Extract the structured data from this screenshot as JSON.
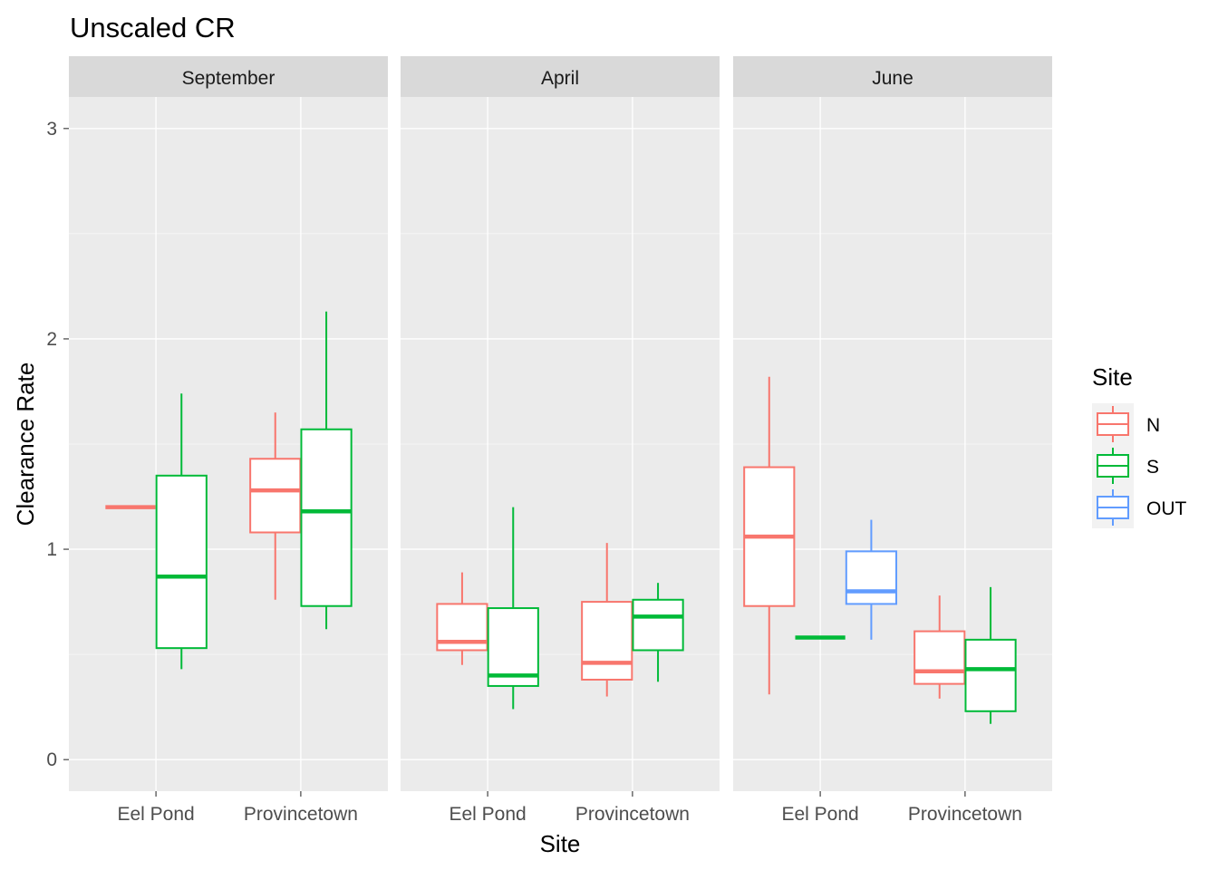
{
  "chart_data": {
    "type": "boxplot",
    "title": "Unscaled CR",
    "xlabel": "Site",
    "ylabel": "Clearance Rate",
    "ylim": [
      -0.15,
      3.15
    ],
    "yticks": [
      0,
      1,
      2,
      3
    ],
    "categories": [
      "Eel Pond",
      "Provincetown"
    ],
    "legend": {
      "title": "Site",
      "position": "right",
      "entries": [
        {
          "name": "N",
          "color": "#F8766D"
        },
        {
          "name": "S",
          "color": "#00BA38"
        },
        {
          "name": "OUT",
          "color": "#619CFF"
        }
      ]
    },
    "grid": true,
    "panels": [
      {
        "label": "September",
        "groups": [
          {
            "category": "Eel Pond",
            "boxes": [
              {
                "series": "N",
                "min": 1.2,
                "q1": 1.2,
                "median": 1.2,
                "q3": 1.2,
                "max": 1.2
              },
              {
                "series": "S",
                "min": 0.43,
                "q1": 0.53,
                "median": 0.87,
                "q3": 1.35,
                "max": 1.74
              }
            ]
          },
          {
            "category": "Provincetown",
            "boxes": [
              {
                "series": "N",
                "min": 0.76,
                "q1": 1.08,
                "median": 1.28,
                "q3": 1.43,
                "max": 1.65
              },
              {
                "series": "S",
                "min": 0.62,
                "q1": 0.73,
                "median": 1.18,
                "q3": 1.57,
                "max": 2.13
              }
            ]
          }
        ]
      },
      {
        "label": "April",
        "groups": [
          {
            "category": "Eel Pond",
            "boxes": [
              {
                "series": "N",
                "min": 0.45,
                "q1": 0.52,
                "median": 0.56,
                "q3": 0.74,
                "max": 0.89
              },
              {
                "series": "S",
                "min": 0.24,
                "q1": 0.35,
                "median": 0.4,
                "q3": 0.72,
                "max": 1.2
              }
            ]
          },
          {
            "category": "Provincetown",
            "boxes": [
              {
                "series": "N",
                "min": 0.3,
                "q1": 0.38,
                "median": 0.46,
                "q3": 0.75,
                "max": 1.03
              },
              {
                "series": "S",
                "min": 0.37,
                "q1": 0.52,
                "median": 0.68,
                "q3": 0.76,
                "max": 0.84
              }
            ]
          }
        ]
      },
      {
        "label": "June",
        "groups": [
          {
            "category": "Eel Pond",
            "boxes": [
              {
                "series": "N",
                "min": 0.31,
                "q1": 0.73,
                "median": 1.06,
                "q3": 1.39,
                "max": 1.82
              },
              {
                "series": "S",
                "min": 0.58,
                "q1": 0.58,
                "median": 0.58,
                "q3": 0.58,
                "max": 0.58
              },
              {
                "series": "OUT",
                "min": 0.57,
                "q1": 0.74,
                "median": 0.8,
                "q3": 0.99,
                "max": 1.14
              }
            ]
          },
          {
            "category": "Provincetown",
            "boxes": [
              {
                "series": "N",
                "min": 0.29,
                "q1": 0.36,
                "median": 0.42,
                "q3": 0.61,
                "max": 0.78
              },
              {
                "series": "S",
                "min": 0.17,
                "q1": 0.23,
                "median": 0.43,
                "q3": 0.57,
                "max": 0.82
              }
            ]
          }
        ]
      }
    ]
  }
}
